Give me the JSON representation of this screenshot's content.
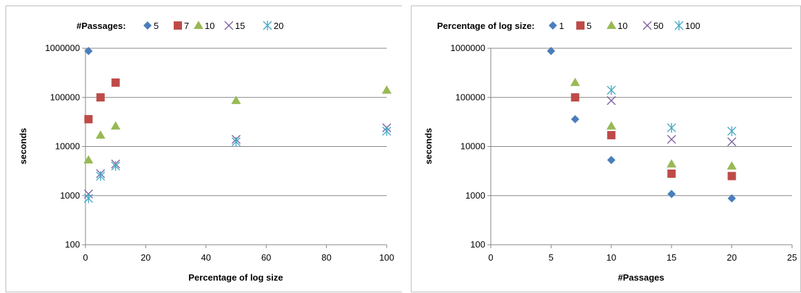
{
  "colors": {
    "series1": "#4a7ebb",
    "series2": "#be4b48",
    "series3": "#98b954",
    "series4": "#7d60a0",
    "series5": "#46aac5"
  },
  "chart_data": [
    {
      "type": "scatter",
      "legend_title": "#Passages:",
      "legend_position": "top",
      "xlabel": "Percentage of log size",
      "ylabel": "seconds",
      "y_scale": "log",
      "xlim": [
        0,
        100
      ],
      "ylim": [
        100,
        1000000
      ],
      "x_ticks": [
        "0",
        "20",
        "40",
        "60",
        "80",
        "100"
      ],
      "y_ticks": [
        "100",
        "1000",
        "10000",
        "100000",
        "1000000"
      ],
      "grid": "horizontal",
      "series": [
        {
          "name": "5",
          "marker": "diamond",
          "points": [
            [
              1,
              880000
            ]
          ]
        },
        {
          "name": "7",
          "marker": "square",
          "points": [
            [
              1,
              36000
            ],
            [
              5,
              100000
            ],
            [
              10,
              200000
            ]
          ]
        },
        {
          "name": "10",
          "marker": "triangle",
          "points": [
            [
              1,
              5300
            ],
            [
              5,
              17000
            ],
            [
              10,
              26000
            ],
            [
              50,
              86000
            ],
            [
              100,
              140000
            ]
          ]
        },
        {
          "name": "15",
          "marker": "x",
          "points": [
            [
              1,
              1080
            ],
            [
              5,
              2800
            ],
            [
              10,
              4400
            ],
            [
              50,
              14000
            ],
            [
              100,
              24000
            ]
          ]
        },
        {
          "name": "20",
          "marker": "asterisk",
          "points": [
            [
              1,
              880
            ],
            [
              5,
              2500
            ],
            [
              10,
              4000
            ],
            [
              50,
              12500
            ],
            [
              100,
              20500
            ]
          ]
        }
      ]
    },
    {
      "type": "scatter",
      "legend_title": "Percentage of log size:",
      "legend_position": "top",
      "xlabel": "#Passages",
      "ylabel": "seconds",
      "y_scale": "log",
      "xlim": [
        0,
        25
      ],
      "ylim": [
        100,
        1000000
      ],
      "x_ticks": [
        "0",
        "5",
        "10",
        "15",
        "20",
        "25"
      ],
      "y_ticks": [
        "100",
        "1000",
        "10000",
        "100000",
        "1000000"
      ],
      "grid": "horizontal",
      "series": [
        {
          "name": "1",
          "marker": "diamond",
          "points": [
            [
              5,
              880000
            ],
            [
              7,
              36000
            ],
            [
              10,
              5300
            ],
            [
              15,
              1080
            ],
            [
              20,
              880
            ]
          ]
        },
        {
          "name": "5",
          "marker": "square",
          "points": [
            [
              7,
              100000
            ],
            [
              10,
              17000
            ],
            [
              15,
              2800
            ],
            [
              20,
              2500
            ]
          ]
        },
        {
          "name": "10",
          "marker": "triangle",
          "points": [
            [
              7,
              200000
            ],
            [
              10,
              26000
            ],
            [
              15,
              4400
            ],
            [
              20,
              4000
            ]
          ]
        },
        {
          "name": "50",
          "marker": "x",
          "points": [
            [
              10,
              86000
            ],
            [
              15,
              14000
            ],
            [
              20,
              12500
            ]
          ]
        },
        {
          "name": "100",
          "marker": "asterisk",
          "points": [
            [
              10,
              140000
            ],
            [
              15,
              24000
            ],
            [
              20,
              20500
            ]
          ]
        }
      ]
    }
  ]
}
